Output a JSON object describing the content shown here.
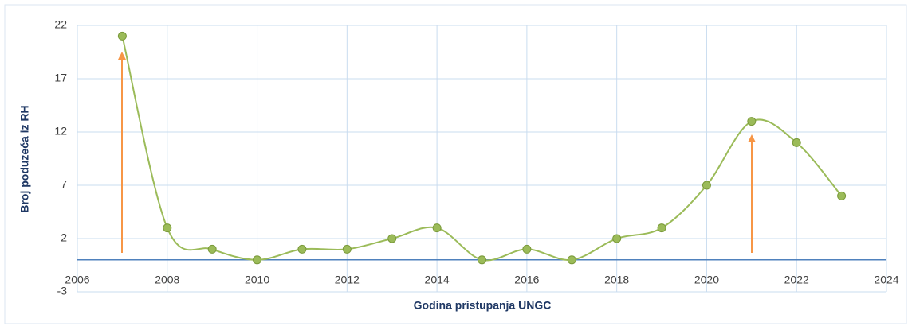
{
  "chart_data": {
    "type": "line",
    "x_label": "Godina pristupanja UNGC",
    "y_label": "Broj poduzeća iz RH",
    "x": [
      2007,
      2008,
      2009,
      2010,
      2011,
      2012,
      2013,
      2014,
      2015,
      2016,
      2017,
      2018,
      2019,
      2020,
      2021,
      2022,
      2023
    ],
    "series": [
      {
        "color": "#9bbb59",
        "values": [
          21,
          3,
          1,
          0,
          1,
          1,
          2,
          3,
          0,
          1,
          0,
          2,
          3,
          7,
          13,
          11,
          6
        ]
      }
    ],
    "xlim": [
      2006,
      2024
    ],
    "xticks": [
      2006,
      2008,
      2010,
      2012,
      2014,
      2016,
      2018,
      2020,
      2022,
      2024
    ],
    "ylim": [
      -3,
      22
    ],
    "yticks": [
      -3,
      2,
      7,
      12,
      17,
      22
    ],
    "grid": true,
    "smooth": true
  }
}
